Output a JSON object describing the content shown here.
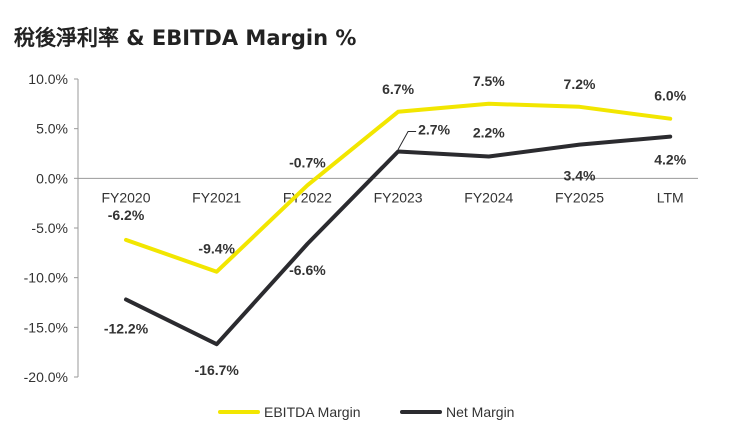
{
  "chart_data": {
    "type": "line",
    "title": "稅後淨利率 & EBITDA Margin %",
    "categories": [
      "FY2020",
      "FY2021",
      "FY2022",
      "FY2023",
      "FY2024",
      "FY2025",
      "LTM"
    ],
    "y_ticks": [
      "10.0%",
      "5.0%",
      "0.0%",
      "-5.0%",
      "-10.0%",
      "-15.0%",
      "-20.0%"
    ],
    "ylim": [
      -20,
      10
    ],
    "grid": false,
    "legend_position": "bottom",
    "series": [
      {
        "name": "EBITDA Margin",
        "color": "#f2e600",
        "values": [
          -6.2,
          -9.4,
          -0.7,
          6.7,
          7.5,
          7.2,
          6.0
        ],
        "labels": [
          "-6.2%",
          "-9.4%",
          "-0.7%",
          "6.7%",
          "7.5%",
          "7.2%",
          "6.0%"
        ]
      },
      {
        "name": "Net Margin",
        "color": "#2b2b2f",
        "values": [
          -12.2,
          -16.7,
          -6.6,
          2.7,
          2.2,
          3.4,
          4.2
        ],
        "labels": [
          "-12.2%",
          "-16.7%",
          "-6.6%",
          "2.7%",
          "2.2%",
          "3.4%",
          "4.2%"
        ]
      }
    ]
  }
}
